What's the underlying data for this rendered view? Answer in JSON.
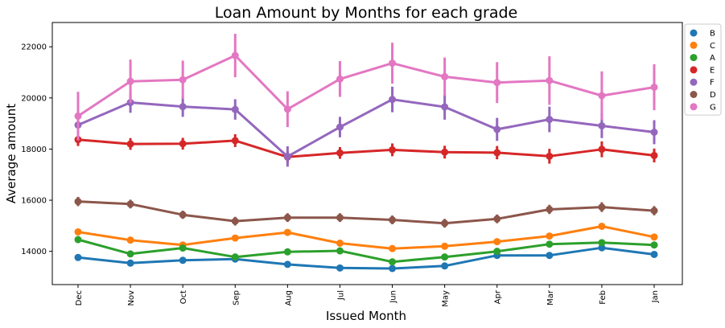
{
  "chart_data": {
    "type": "line",
    "title": "Loan Amount by Months for each grade",
    "xlabel": "Issued Month",
    "ylabel": "Average amount",
    "categories": [
      "Dec",
      "Nov",
      "Oct",
      "Sep",
      "Aug",
      "Jul",
      "Jun",
      "May",
      "Apr",
      "Mar",
      "Feb",
      "Jan"
    ],
    "ylim": [
      12700,
      22950
    ],
    "yticks": [
      14000,
      16000,
      18000,
      20000,
      22000
    ],
    "ytick_labels": [
      "14000",
      "16000",
      "18000",
      "20000",
      "22000"
    ],
    "grid": false,
    "legend_position": "outside-top-right",
    "series": [
      {
        "name": "B",
        "color": "#1f77b4",
        "values": [
          13760,
          13540,
          13650,
          13700,
          13490,
          13350,
          13330,
          13430,
          13840,
          13840,
          14140,
          13880
        ],
        "err": [
          60,
          60,
          60,
          60,
          60,
          60,
          60,
          60,
          60,
          60,
          70,
          70
        ]
      },
      {
        "name": "C",
        "color": "#ff7f0e",
        "values": [
          14760,
          14440,
          14250,
          14520,
          14740,
          14320,
          14110,
          14200,
          14380,
          14600,
          14980,
          14560
        ],
        "err": [
          80,
          80,
          80,
          80,
          80,
          80,
          80,
          80,
          80,
          80,
          120,
          100
        ]
      },
      {
        "name": "A",
        "color": "#2ca02c",
        "values": [
          14460,
          13900,
          14130,
          13780,
          13980,
          14020,
          13590,
          13780,
          14000,
          14280,
          14340,
          14250
        ],
        "err": [
          90,
          80,
          80,
          80,
          80,
          80,
          80,
          80,
          80,
          80,
          80,
          80
        ]
      },
      {
        "name": "E",
        "color": "#d62728",
        "values": [
          18370,
          18200,
          18210,
          18330,
          17690,
          17850,
          17970,
          17880,
          17860,
          17720,
          17990,
          17750
        ],
        "err": [
          250,
          230,
          230,
          250,
          230,
          230,
          250,
          250,
          260,
          290,
          310,
          270
        ]
      },
      {
        "name": "F",
        "color": "#9467bd",
        "values": [
          18940,
          19820,
          19660,
          19550,
          17710,
          18860,
          19940,
          19650,
          18770,
          19160,
          18910,
          18660
        ],
        "err": [
          300,
          400,
          400,
          400,
          400,
          400,
          500,
          500,
          450,
          500,
          480,
          470
        ]
      },
      {
        "name": "D",
        "color": "#8c564b",
        "values": [
          15950,
          15850,
          15430,
          15180,
          15320,
          15320,
          15230,
          15100,
          15270,
          15640,
          15730,
          15590
        ],
        "err": [
          180,
          170,
          160,
          170,
          170,
          170,
          170,
          170,
          170,
          180,
          190,
          180
        ]
      },
      {
        "name": "G",
        "color": "#e377c2",
        "values": [
          19290,
          20650,
          20710,
          21660,
          19560,
          20740,
          21360,
          20830,
          20600,
          20680,
          20090,
          20420
        ],
        "err": [
          950,
          850,
          750,
          850,
          700,
          700,
          800,
          750,
          800,
          950,
          950,
          900
        ]
      }
    ]
  }
}
